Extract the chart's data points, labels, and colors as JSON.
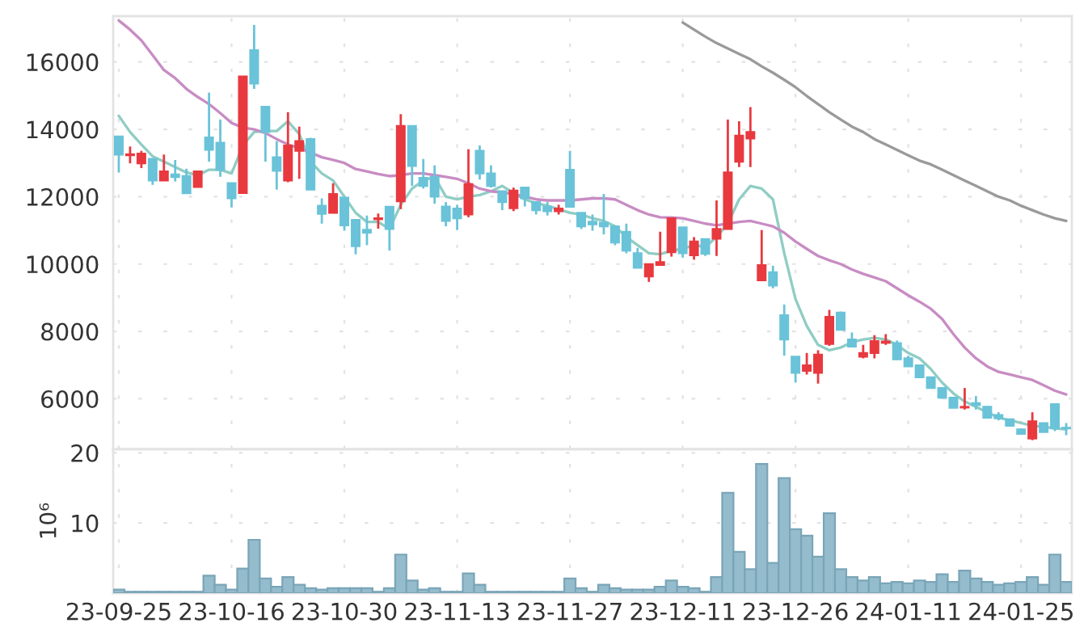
{
  "chart_data": [
    {
      "type": "candlestick",
      "categories": [
        null,
        null,
        null,
        null,
        null,
        null,
        null,
        null,
        null,
        null,
        null,
        null,
        null,
        null,
        null,
        null,
        null,
        null,
        null,
        null,
        null,
        null,
        null,
        null,
        null,
        null,
        null,
        null,
        null,
        null,
        null,
        null,
        null,
        null,
        null,
        null,
        null,
        null,
        null,
        null,
        null,
        null,
        null,
        null,
        null,
        null,
        null,
        null,
        null,
        null,
        null,
        null,
        null,
        null,
        null,
        null,
        null,
        null,
        null,
        null,
        null,
        null,
        null,
        null,
        null,
        null,
        null,
        null,
        null,
        null,
        null,
        null,
        null,
        null,
        null,
        null,
        null,
        null,
        null,
        null,
        null,
        null,
        null,
        null,
        null
      ],
      "ohlc": [
        [
          13790,
          13790,
          12720,
          13250
        ],
        [
          13230,
          13490,
          12990,
          13260
        ],
        [
          12990,
          13360,
          12850,
          13280
        ],
        [
          13120,
          13120,
          12350,
          12480
        ],
        [
          12480,
          13250,
          12480,
          12750
        ],
        [
          12660,
          13090,
          12450,
          12580
        ],
        [
          12610,
          12830,
          12100,
          12100
        ],
        [
          12290,
          12750,
          12290,
          12750
        ],
        [
          13760,
          15090,
          13040,
          13390
        ],
        [
          13600,
          14290,
          12590,
          12800
        ],
        [
          12400,
          12400,
          11680,
          11950
        ],
        [
          12110,
          15570,
          12110,
          15570
        ],
        [
          16350,
          17100,
          15200,
          15360
        ],
        [
          14670,
          14670,
          13040,
          13920
        ],
        [
          13170,
          13650,
          12210,
          12770
        ],
        [
          12480,
          14510,
          12430,
          13520
        ],
        [
          13360,
          14080,
          12530,
          13650
        ],
        [
          13710,
          13750,
          12210,
          12210
        ],
        [
          11730,
          11950,
          11200,
          11490
        ],
        [
          11520,
          12400,
          11520,
          12080
        ],
        [
          11970,
          11970,
          10990,
          11150
        ],
        [
          11310,
          11310,
          10290,
          10530
        ],
        [
          11020,
          11440,
          10560,
          10930
        ],
        [
          11330,
          11500,
          11050,
          11360
        ],
        [
          11700,
          11700,
          10400,
          11040
        ],
        [
          11860,
          14450,
          11630,
          14100
        ],
        [
          14100,
          14100,
          12320,
          12910
        ],
        [
          12560,
          13120,
          12240,
          12320
        ],
        [
          12590,
          12930,
          11790,
          12000
        ],
        [
          11710,
          11840,
          11120,
          11280
        ],
        [
          11650,
          11760,
          11010,
          11360
        ],
        [
          11470,
          13410,
          11390,
          12370
        ],
        [
          13360,
          13520,
          12510,
          12690
        ],
        [
          12690,
          12930,
          12270,
          12320
        ],
        [
          12160,
          12160,
          11600,
          11840
        ],
        [
          11660,
          12270,
          11570,
          12180
        ],
        [
          12270,
          12270,
          11710,
          11950
        ],
        [
          11840,
          11840,
          11470,
          11600
        ],
        [
          11700,
          11840,
          11440,
          11570
        ],
        [
          11570,
          11760,
          11470,
          11650
        ],
        [
          12800,
          13360,
          11700,
          11700
        ],
        [
          11520,
          11520,
          11040,
          11120
        ],
        [
          11260,
          11470,
          10990,
          11180
        ],
        [
          11230,
          12080,
          10880,
          11120
        ],
        [
          11120,
          11120,
          10560,
          10640
        ],
        [
          10960,
          11200,
          10320,
          10400
        ],
        [
          10320,
          10480,
          9890,
          9890
        ],
        [
          9630,
          10000,
          9470,
          10000
        ],
        [
          9970,
          10960,
          9970,
          10060
        ],
        [
          10350,
          11360,
          10220,
          11360
        ],
        [
          11090,
          11090,
          10190,
          10320
        ],
        [
          10260,
          10800,
          10130,
          10670
        ],
        [
          10740,
          10740,
          10240,
          10300
        ],
        [
          10750,
          11890,
          10240,
          11040
        ],
        [
          11040,
          14290,
          11040,
          12720
        ],
        [
          13040,
          14240,
          12880,
          13810
        ],
        [
          13730,
          14660,
          12880,
          13920
        ],
        [
          9520,
          11010,
          9520,
          9970
        ],
        [
          9760,
          9950,
          9280,
          9360
        ],
        [
          8480,
          8800,
          7280,
          7760
        ],
        [
          7250,
          7250,
          6480,
          6770
        ],
        [
          6830,
          7360,
          6720,
          6990
        ],
        [
          6770,
          7440,
          6450,
          7310
        ],
        [
          7630,
          8640,
          7570,
          8430
        ],
        [
          8560,
          8590,
          8050,
          8050
        ],
        [
          7760,
          7970,
          7520,
          7550
        ],
        [
          7250,
          7600,
          7200,
          7360
        ],
        [
          7360,
          7890,
          7200,
          7710
        ],
        [
          7660,
          7920,
          7600,
          7700
        ],
        [
          7650,
          7730,
          7150,
          7170
        ],
        [
          7200,
          7280,
          6960,
          6960
        ],
        [
          6990,
          6990,
          6640,
          6640
        ],
        [
          6640,
          6640,
          6320,
          6320
        ],
        [
          6320,
          6350,
          6000,
          6030
        ],
        [
          6030,
          6030,
          5730,
          5730
        ],
        [
          5740,
          6320,
          5680,
          5760
        ],
        [
          5870,
          6080,
          5680,
          5810
        ],
        [
          5760,
          5760,
          5440,
          5440
        ],
        [
          5520,
          5600,
          5360,
          5420
        ],
        [
          5390,
          5390,
          5200,
          5200
        ],
        [
          5090,
          5120,
          4930,
          4960
        ],
        [
          4820,
          5600,
          4770,
          5330
        ],
        [
          5280,
          5280,
          5010,
          5010
        ],
        [
          5840,
          5840,
          5040,
          5120
        ],
        [
          5140,
          5280,
          4920,
          5120
        ]
      ],
      "colors": [
        "#6ac3d8",
        "#e8393f",
        "#e8393f",
        "#6ac3d8",
        "#e8393f",
        "#6ac3d8",
        "#6ac3d8",
        "#e8393f",
        "#6ac3d8",
        "#6ac3d8",
        "#6ac3d8",
        "#e8393f",
        "#6ac3d8",
        "#6ac3d8",
        "#6ac3d8",
        "#e8393f",
        "#e8393f",
        "#6ac3d8",
        "#6ac3d8",
        "#e8393f",
        "#6ac3d8",
        "#6ac3d8",
        "#6ac3d8",
        "#e8393f",
        "#6ac3d8",
        "#e8393f",
        "#6ac3d8",
        "#6ac3d8",
        "#6ac3d8",
        "#6ac3d8",
        "#6ac3d8",
        "#e8393f",
        "#6ac3d8",
        "#6ac3d8",
        "#6ac3d8",
        "#e8393f",
        "#6ac3d8",
        "#6ac3d8",
        "#6ac3d8",
        "#e8393f",
        "#6ac3d8",
        "#6ac3d8",
        "#6ac3d8",
        "#6ac3d8",
        "#6ac3d8",
        "#6ac3d8",
        "#6ac3d8",
        "#e8393f",
        "#e8393f",
        "#e8393f",
        "#6ac3d8",
        "#e8393f",
        "#6ac3d8",
        "#e8393f",
        "#e8393f",
        "#e8393f",
        "#e8393f",
        "#e8393f",
        "#6ac3d8",
        "#6ac3d8",
        "#6ac3d8",
        "#e8393f",
        "#e8393f",
        "#e8393f",
        "#6ac3d8",
        "#6ac3d8",
        "#e8393f",
        "#e8393f",
        "#e8393f",
        "#6ac3d8",
        "#6ac3d8",
        "#6ac3d8",
        "#6ac3d8",
        "#6ac3d8",
        "#6ac3d8",
        "#e8393f",
        "#6ac3d8",
        "#6ac3d8",
        "#6ac3d8",
        "#6ac3d8",
        "#6ac3d8",
        "#e8393f",
        "#6ac3d8",
        "#6ac3d8",
        "#6ac3d8"
      ],
      "series": [
        {
          "type": "line",
          "color": "#8fcdc4",
          "values": [
            14400,
            13920,
            13550,
            13200,
            13040,
            12880,
            12720,
            12640,
            12800,
            12800,
            12690,
            13520,
            13920,
            13950,
            13950,
            14240,
            13860,
            13040,
            12690,
            12480,
            12000,
            11520,
            11250,
            11250,
            11040,
            11760,
            12240,
            12480,
            12590,
            12000,
            11920,
            12000,
            12050,
            12160,
            12320,
            12110,
            11920,
            11810,
            11730,
            11630,
            11520,
            11470,
            11360,
            11280,
            11120,
            10800,
            10560,
            10320,
            10290,
            10400,
            10450,
            10560,
            10510,
            10800,
            11200,
            11920,
            12320,
            12240,
            11920,
            10320,
            8960,
            8160,
            7600,
            7440,
            7520,
            7680,
            7760,
            7810,
            7760,
            7600,
            7360,
            7200,
            6880,
            6480,
            6160,
            5920,
            5760,
            5600,
            5440,
            5360,
            5280,
            5200,
            5170,
            5120,
            5090
          ]
        },
        {
          "type": "line",
          "color": "#c88cc3",
          "values": [
            17230,
            16960,
            16640,
            16200,
            15760,
            15520,
            15200,
            14960,
            14750,
            14480,
            14190,
            14050,
            14000,
            13890,
            13710,
            13550,
            13440,
            13310,
            13170,
            13090,
            13000,
            12820,
            12750,
            12670,
            12610,
            12640,
            12690,
            12690,
            12640,
            12590,
            12530,
            12400,
            12240,
            12160,
            12130,
            12080,
            12000,
            11920,
            11890,
            11890,
            11890,
            11920,
            11950,
            11950,
            11920,
            11760,
            11600,
            11470,
            11390,
            11380,
            11360,
            11280,
            11200,
            11150,
            11200,
            11250,
            11280,
            11200,
            11120,
            10930,
            10670,
            10450,
            10240,
            10110,
            10000,
            9840,
            9710,
            9600,
            9490,
            9280,
            9070,
            8880,
            8670,
            8370,
            7920,
            7520,
            7200,
            6960,
            6800,
            6720,
            6640,
            6560,
            6400,
            6240,
            6130
          ]
        },
        {
          "type": "line",
          "color": "#9a9a9a",
          "values": [
            null,
            null,
            null,
            null,
            null,
            null,
            null,
            null,
            null,
            null,
            null,
            null,
            null,
            null,
            null,
            null,
            null,
            null,
            null,
            null,
            null,
            null,
            null,
            null,
            null,
            null,
            null,
            null,
            null,
            null,
            null,
            null,
            null,
            null,
            null,
            null,
            null,
            null,
            null,
            null,
            null,
            null,
            null,
            null,
            null,
            null,
            null,
            null,
            null,
            null,
            17170,
            16960,
            16750,
            16560,
            16400,
            16240,
            16080,
            15870,
            15680,
            15470,
            15250,
            14990,
            14750,
            14510,
            14290,
            14080,
            13920,
            13710,
            13550,
            13390,
            13230,
            13070,
            12960,
            12800,
            12640,
            12480,
            12320,
            12160,
            12000,
            11890,
            11730,
            11600,
            11470,
            11360,
            11280
          ]
        }
      ],
      "ylim": [
        4500,
        17360
      ],
      "yticks": [
        6000,
        8000,
        10000,
        12000,
        14000,
        16000
      ],
      "grid": true,
      "tick_labels": "y"
    },
    {
      "type": "bar",
      "categories": [
        "23-09-25",
        null,
        null,
        null,
        null,
        null,
        null,
        null,
        null,
        null,
        "23-10-16",
        null,
        null,
        null,
        null,
        null,
        null,
        null,
        null,
        null,
        "23-10-30",
        null,
        null,
        null,
        null,
        null,
        null,
        null,
        null,
        null,
        "23-11-13",
        null,
        null,
        null,
        null,
        null,
        null,
        null,
        null,
        null,
        "23-11-27",
        null,
        null,
        null,
        null,
        null,
        null,
        null,
        null,
        null,
        "23-12-11",
        null,
        null,
        null,
        null,
        null,
        null,
        null,
        null,
        null,
        "23-12-26",
        null,
        null,
        null,
        null,
        null,
        null,
        null,
        null,
        null,
        "24-01-11",
        null,
        null,
        null,
        null,
        null,
        null,
        null,
        null,
        null,
        "24-01-25",
        null,
        null,
        null,
        null
      ],
      "values": [
        0.5,
        0.2,
        0.2,
        0.2,
        0.2,
        0.2,
        0.2,
        0.2,
        2.5,
        1.2,
        0.5,
        3.5,
        7.6,
        2.1,
        0.9,
        2.3,
        1.2,
        0.7,
        0.5,
        0.7,
        0.7,
        0.7,
        0.7,
        0.2,
        0.7,
        5.5,
        1.8,
        0.5,
        0.7,
        0.2,
        0.2,
        2.8,
        1.2,
        0.2,
        0.2,
        0.2,
        0.2,
        0.2,
        0.2,
        0.2,
        2.1,
        0.7,
        0.2,
        1.2,
        0.7,
        0.5,
        0.5,
        0.5,
        0.9,
        1.8,
        0.9,
        0.7,
        0.2,
        2.3,
        14.3,
        5.9,
        3.4,
        18.4,
        4.3,
        16.4,
        9.1,
        8.2,
        5.2,
        11.4,
        3.4,
        2.3,
        1.8,
        2.3,
        1.4,
        1.6,
        1.4,
        1.8,
        1.6,
        2.7,
        1.6,
        3.2,
        2.1,
        1.6,
        1.2,
        1.4,
        1.6,
        2.3,
        1.2,
        5.5,
        1.6
      ],
      "color": "#95bccc",
      "ylabel": "10⁶",
      "ylim": [
        0,
        20.5
      ],
      "yticks": [
        10,
        20
      ],
      "grid": true
    }
  ]
}
